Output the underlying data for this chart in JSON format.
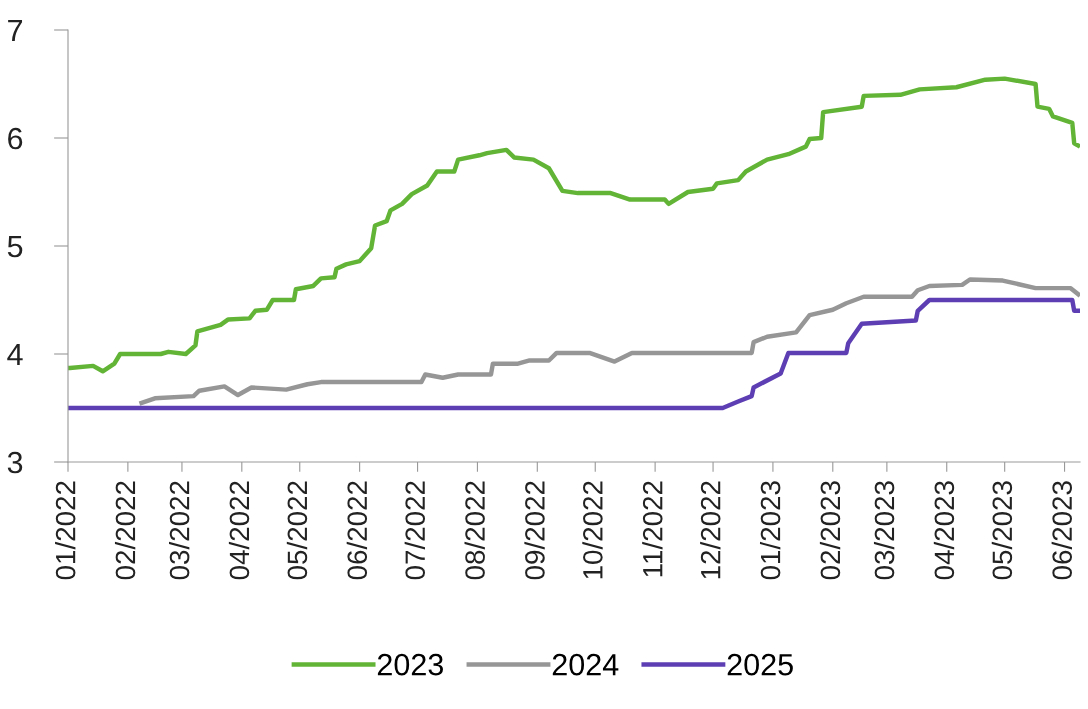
{
  "chart_data": {
    "type": "line",
    "xlim": [
      "2022-01-01",
      "2023-06-09"
    ],
    "xticks": [
      {
        "value": "2022-01-01",
        "label": "01/2022"
      },
      {
        "value": "2022-02-01",
        "label": "02/2022"
      },
      {
        "value": "2022-03-01",
        "label": "03/2022"
      },
      {
        "value": "2022-04-01",
        "label": "04/2022"
      },
      {
        "value": "2022-05-01",
        "label": "05/2022"
      },
      {
        "value": "2022-06-01",
        "label": "06/2022"
      },
      {
        "value": "2022-07-01",
        "label": "07/2022"
      },
      {
        "value": "2022-08-01",
        "label": "08/2022"
      },
      {
        "value": "2022-09-01",
        "label": "09/2022"
      },
      {
        "value": "2022-10-01",
        "label": "10/2022"
      },
      {
        "value": "2022-11-01",
        "label": "11/2022"
      },
      {
        "value": "2022-12-01",
        "label": "12/2022"
      },
      {
        "value": "2023-01-01",
        "label": "01/2023"
      },
      {
        "value": "2023-02-01",
        "label": "02/2023"
      },
      {
        "value": "2023-03-01",
        "label": "03/2023"
      },
      {
        "value": "2023-04-01",
        "label": "04/2023"
      },
      {
        "value": "2023-05-01",
        "label": "05/2023"
      },
      {
        "value": "2023-06-01",
        "label": "06/2023"
      }
    ],
    "ylim": [
      3,
      7
    ],
    "yticks": [
      3,
      4,
      5,
      6,
      7
    ],
    "grid": false,
    "legend": "bottom",
    "marker": "none",
    "line_style": "solid",
    "series": [
      {
        "name": "2023",
        "color": "#62b436",
        "x": [
          "2022-01-01",
          "2022-01-02",
          "2022-01-14",
          "2022-01-19",
          "2022-01-25",
          "2022-01-28",
          "2022-02-18",
          "2022-02-22",
          "2022-03-03",
          "2022-03-08",
          "2022-03-09",
          "2022-03-21",
          "2022-03-25",
          "2022-04-05",
          "2022-04-08",
          "2022-04-14",
          "2022-04-17",
          "2022-04-28",
          "2022-04-29",
          "2022-05-08",
          "2022-05-12",
          "2022-05-19",
          "2022-05-20",
          "2022-05-25",
          "2022-06-01",
          "2022-06-07",
          "2022-06-09",
          "2022-06-15",
          "2022-06-17",
          "2022-06-23",
          "2022-06-28",
          "2022-07-06",
          "2022-07-11",
          "2022-07-20",
          "2022-07-22",
          "2022-08-02",
          "2022-08-06",
          "2022-08-16",
          "2022-08-20",
          "2022-08-30",
          "2022-09-07",
          "2022-09-14",
          "2022-09-22",
          "2022-10-09",
          "2022-10-19",
          "2022-11-06",
          "2022-11-08",
          "2022-11-18",
          "2022-12-01",
          "2022-12-03",
          "2022-12-14",
          "2022-12-18",
          "2022-12-29",
          "2023-01-09",
          "2023-01-18",
          "2023-01-20",
          "2023-01-26",
          "2023-01-27",
          "2023-02-16",
          "2023-02-17",
          "2023-03-08",
          "2023-03-18",
          "2023-04-06",
          "2023-04-21",
          "2023-05-01",
          "2023-05-17",
          "2023-05-18",
          "2023-05-24",
          "2023-05-26",
          "2023-06-05",
          "2023-06-06",
          "2023-06-09"
        ],
        "values": [
          3.87,
          3.87,
          3.89,
          3.84,
          3.91,
          4.0,
          4.0,
          4.02,
          4.0,
          4.08,
          4.21,
          4.27,
          4.32,
          4.33,
          4.4,
          4.41,
          4.5,
          4.5,
          4.6,
          4.63,
          4.7,
          4.71,
          4.79,
          4.83,
          4.86,
          4.98,
          5.19,
          5.23,
          5.33,
          5.39,
          5.48,
          5.56,
          5.69,
          5.69,
          5.8,
          5.84,
          5.86,
          5.89,
          5.82,
          5.8,
          5.72,
          5.51,
          5.49,
          5.49,
          5.43,
          5.43,
          5.39,
          5.5,
          5.53,
          5.58,
          5.61,
          5.69,
          5.8,
          5.85,
          5.92,
          5.99,
          6.0,
          6.24,
          6.29,
          6.39,
          6.4,
          6.45,
          6.47,
          6.54,
          6.55,
          6.5,
          6.29,
          6.27,
          6.2,
          6.14,
          5.95,
          5.92
        ]
      },
      {
        "name": "2024",
        "color": "#969696",
        "x": [
          "2022-02-07",
          "2022-02-15",
          "2022-03-07",
          "2022-03-10",
          "2022-03-23",
          "2022-03-30",
          "2022-04-06",
          "2022-04-24",
          "2022-05-05",
          "2022-05-12",
          "2022-07-03",
          "2022-07-05",
          "2022-07-14",
          "2022-07-22",
          "2022-08-08",
          "2022-08-09",
          "2022-08-22",
          "2022-08-28",
          "2022-09-07",
          "2022-09-11",
          "2022-09-28",
          "2022-10-11",
          "2022-10-20",
          "2022-12-21",
          "2022-12-22",
          "2022-12-29",
          "2023-01-13",
          "2023-01-20",
          "2023-02-01",
          "2023-02-08",
          "2023-02-17",
          "2023-03-14",
          "2023-03-17",
          "2023-03-23",
          "2023-04-09",
          "2023-04-13",
          "2023-04-30",
          "2023-05-17",
          "2023-06-04",
          "2023-06-09"
        ],
        "values": [
          3.54,
          3.59,
          3.61,
          3.66,
          3.7,
          3.62,
          3.69,
          3.67,
          3.72,
          3.74,
          3.74,
          3.81,
          3.78,
          3.81,
          3.81,
          3.91,
          3.91,
          3.94,
          3.94,
          4.01,
          4.01,
          3.93,
          4.01,
          4.01,
          4.11,
          4.16,
          4.2,
          4.36,
          4.41,
          4.47,
          4.53,
          4.53,
          4.59,
          4.63,
          4.64,
          4.69,
          4.68,
          4.61,
          4.61,
          4.54
        ]
      },
      {
        "name": "2025",
        "color": "#5d3fb3",
        "x": [
          "2022-01-01",
          "2022-12-06",
          "2022-12-14",
          "2022-12-21",
          "2022-12-22",
          "2023-01-05",
          "2023-01-09",
          "2023-02-08",
          "2023-02-09",
          "2023-02-16",
          "2023-03-16",
          "2023-03-17",
          "2023-03-23",
          "2023-06-05",
          "2023-06-06",
          "2023-06-09"
        ],
        "values": [
          3.5,
          3.5,
          3.56,
          3.61,
          3.69,
          3.82,
          4.01,
          4.01,
          4.1,
          4.28,
          4.31,
          4.4,
          4.5,
          4.5,
          4.4,
          4.4
        ]
      }
    ]
  }
}
